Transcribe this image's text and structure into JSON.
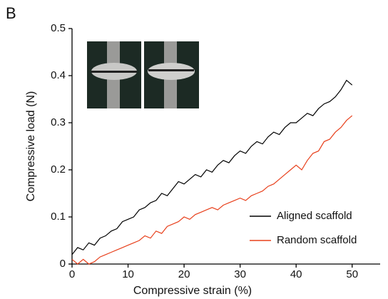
{
  "chart_data": {
    "type": "line",
    "panel_label": "B",
    "x_label": "Compressive strain (%)",
    "y_label": "Compressive load (N)",
    "x": [
      0,
      1,
      2,
      3,
      4,
      5,
      6,
      7,
      8,
      9,
      10,
      11,
      12,
      13,
      14,
      15,
      16,
      17,
      18,
      19,
      20,
      21,
      22,
      23,
      24,
      25,
      26,
      27,
      28,
      29,
      30,
      31,
      32,
      33,
      34,
      35,
      36,
      37,
      38,
      39,
      40,
      41,
      42,
      43,
      44,
      45,
      46,
      47,
      48,
      49,
      50
    ],
    "series": [
      {
        "name": "Aligned scaffold",
        "color": "#000000",
        "values": [
          0.02,
          0.035,
          0.03,
          0.045,
          0.04,
          0.055,
          0.06,
          0.07,
          0.075,
          0.09,
          0.095,
          0.1,
          0.115,
          0.12,
          0.13,
          0.135,
          0.15,
          0.145,
          0.16,
          0.175,
          0.17,
          0.18,
          0.19,
          0.185,
          0.2,
          0.195,
          0.21,
          0.22,
          0.215,
          0.23,
          0.24,
          0.235,
          0.25,
          0.26,
          0.255,
          0.27,
          0.28,
          0.275,
          0.29,
          0.3,
          0.3,
          0.31,
          0.32,
          0.315,
          0.33,
          0.34,
          0.345,
          0.355,
          0.37,
          0.39,
          0.38
        ]
      },
      {
        "name": "Random scaffold",
        "color": "#e8401c",
        "values": [
          0.01,
          0,
          0.01,
          0,
          0.005,
          0.015,
          0.02,
          0.025,
          0.03,
          0.035,
          0.04,
          0.045,
          0.05,
          0.06,
          0.055,
          0.07,
          0.065,
          0.08,
          0.085,
          0.09,
          0.1,
          0.095,
          0.105,
          0.11,
          0.115,
          0.12,
          0.115,
          0.125,
          0.13,
          0.135,
          0.14,
          0.135,
          0.145,
          0.15,
          0.155,
          0.165,
          0.17,
          0.18,
          0.19,
          0.2,
          0.21,
          0.2,
          0.22,
          0.235,
          0.24,
          0.26,
          0.265,
          0.28,
          0.29,
          0.305,
          0.315
        ]
      }
    ],
    "xlim": [
      0,
      55
    ],
    "xticks": [
      0,
      10,
      20,
      30,
      40,
      50
    ],
    "ylim": [
      0,
      0.5
    ],
    "yticks": [
      0,
      0.1,
      0.2,
      0.3,
      0.4,
      0.5
    ],
    "grid": false
  }
}
